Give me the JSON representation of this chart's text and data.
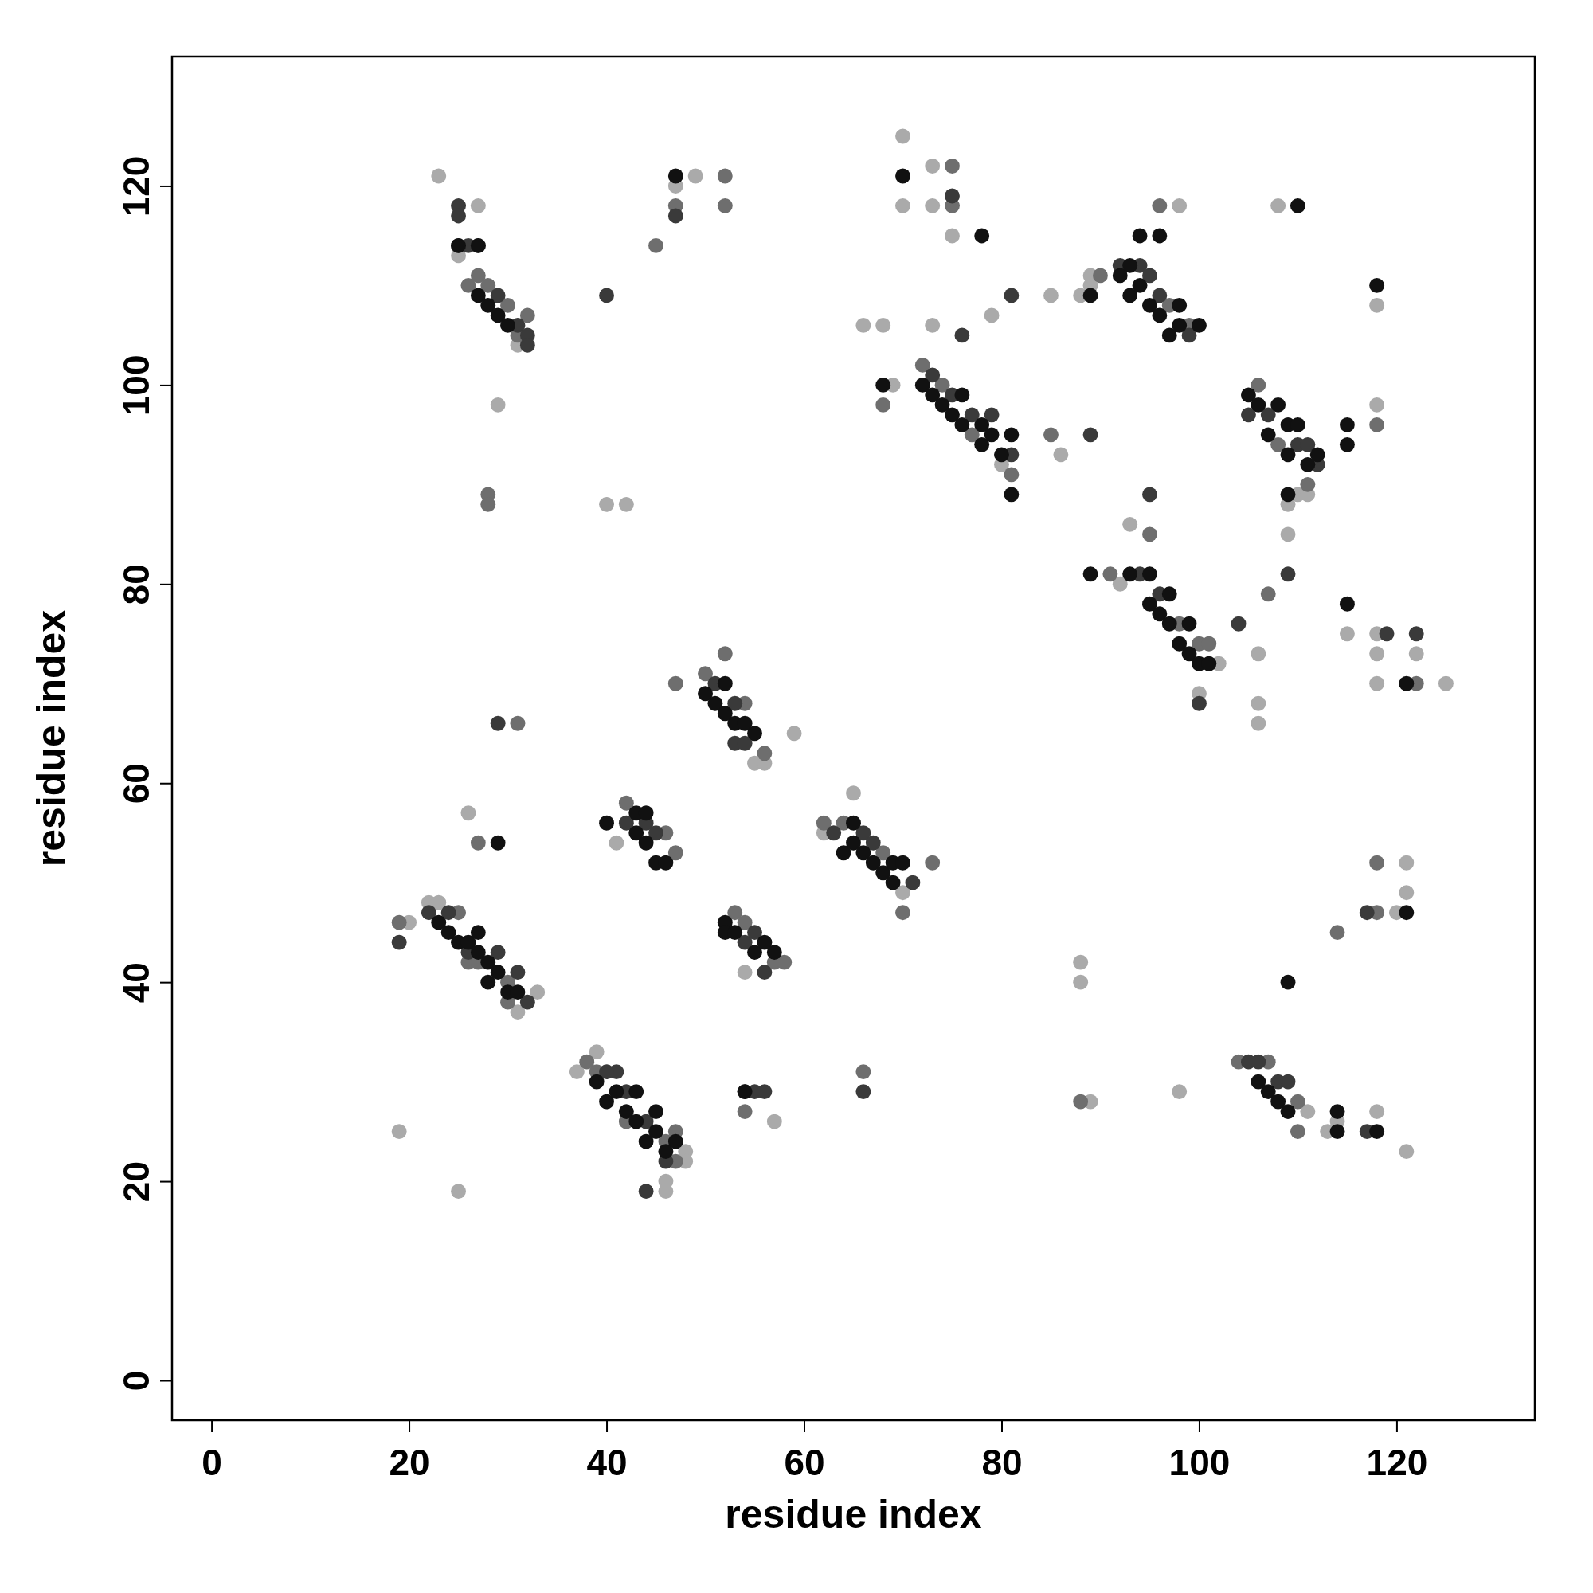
{
  "chart_data": {
    "type": "scatter",
    "xlabel": "residue index",
    "ylabel": "residue index",
    "xlim": [
      -4,
      134
    ],
    "ylim": [
      -4,
      133
    ],
    "xticks": [
      0,
      20,
      40,
      60,
      80,
      100,
      120
    ],
    "yticks": [
      0,
      20,
      40,
      60,
      80,
      100,
      120
    ],
    "marker": "circle",
    "series": [
      {
        "color": "#aaaaaa",
        "x": [
          20,
          22,
          23,
          31,
          33,
          37,
          39,
          48,
          48,
          46,
          46,
          23,
          27,
          25,
          31,
          29,
          26,
          19,
          25,
          41,
          40,
          42,
          47,
          49,
          54,
          55,
          56,
          59,
          57,
          62,
          65,
          70,
          69,
          80,
          70,
          70,
          73,
          73,
          75,
          79,
          66,
          68,
          73,
          85,
          86,
          88,
          89,
          89,
          92,
          93,
          100,
          102,
          98,
          110,
          111,
          109,
          109,
          111,
          113,
          114,
          118,
          121,
          98,
          89,
          88,
          88,
          106,
          106,
          106,
          115,
          118,
          118,
          118,
          122,
          125,
          118,
          118,
          108,
          120,
          121,
          121
        ],
        "values": [
          46,
          48,
          48,
          37,
          39,
          31,
          33,
          23,
          22,
          20,
          19,
          121,
          118,
          113,
          104,
          98,
          57,
          25,
          19,
          54,
          88,
          88,
          120,
          121,
          41,
          62,
          62,
          65,
          26,
          55,
          59,
          49,
          100,
          92,
          125,
          118,
          122,
          118,
          115,
          107,
          106,
          106,
          106,
          109,
          93,
          109,
          110,
          111,
          80,
          86,
          69,
          72,
          118,
          89,
          89,
          88,
          85,
          27,
          25,
          26,
          27,
          23,
          29,
          28,
          42,
          40,
          73,
          68,
          66,
          75,
          75,
          73,
          70,
          73,
          70,
          108,
          98,
          118,
          47,
          52,
          49
        ]
      },
      {
        "color": "#6e6e6e",
        "x": [
          25,
          26,
          27,
          30,
          30,
          19,
          38,
          39,
          42,
          47,
          46,
          47,
          26,
          27,
          28,
          30,
          31,
          32,
          28,
          28,
          31,
          27,
          42,
          46,
          47,
          45,
          47,
          52,
          52,
          47,
          50,
          52,
          54,
          56,
          53,
          54,
          57,
          58,
          54,
          66,
          62,
          64,
          68,
          70,
          73,
          68,
          72,
          74,
          77,
          81,
          75,
          75,
          85,
          90,
          96,
          97,
          99,
          91,
          95,
          98,
          100,
          101,
          106,
          108,
          111,
          107,
          104,
          107,
          110,
          110,
          88,
          122,
          118,
          114,
          118,
          118
        ],
        "values": [
          47,
          42,
          42,
          40,
          38,
          46,
          32,
          31,
          26,
          25,
          24,
          22,
          110,
          111,
          110,
          108,
          105,
          107,
          89,
          88,
          66,
          54,
          58,
          55,
          53,
          114,
          118,
          121,
          118,
          70,
          71,
          73,
          68,
          63,
          47,
          46,
          42,
          42,
          27,
          31,
          56,
          56,
          53,
          47,
          52,
          98,
          102,
          100,
          95,
          91,
          122,
          118,
          95,
          111,
          118,
          108,
          106,
          81,
          85,
          76,
          74,
          74,
          100,
          94,
          90,
          79,
          32,
          32,
          28,
          25,
          28,
          70,
          96,
          45,
          47,
          52
        ]
      },
      {
        "color": "#3a3a3a",
        "x": [
          22,
          24,
          26,
          29,
          31,
          32,
          19,
          41,
          42,
          44,
          46,
          40,
          44,
          25,
          25,
          25,
          26,
          27,
          29,
          31,
          32,
          32,
          29,
          42,
          45,
          44,
          40,
          47,
          51,
          53,
          53,
          54,
          54,
          55,
          56,
          54,
          55,
          56,
          66,
          63,
          66,
          67,
          71,
          73,
          75,
          77,
          79,
          81,
          75,
          76,
          81,
          89,
          92,
          94,
          95,
          96,
          99,
          94,
          96,
          95,
          100,
          105,
          107,
          110,
          111,
          112,
          109,
          105,
          106,
          108,
          109,
          117,
          104,
          119,
          122,
          117
        ],
        "values": [
          47,
          47,
          43,
          43,
          41,
          38,
          44,
          31,
          29,
          26,
          22,
          31,
          19,
          114,
          118,
          117,
          114,
          114,
          109,
          106,
          105,
          104,
          66,
          56,
          55,
          56,
          109,
          117,
          70,
          68,
          64,
          64,
          44,
          45,
          41,
          29,
          29,
          29,
          29,
          55,
          55,
          54,
          50,
          101,
          99,
          97,
          97,
          93,
          119,
          105,
          109,
          95,
          112,
          112,
          111,
          109,
          105,
          81,
          79,
          89,
          68,
          97,
          97,
          94,
          94,
          92,
          81,
          32,
          32,
          30,
          30,
          25,
          76,
          75,
          75,
          47
        ]
      },
      {
        "color": "#111111",
        "x": [
          23,
          24,
          25,
          26,
          27,
          27,
          28,
          28,
          29,
          30,
          31,
          39,
          40,
          41,
          42,
          43,
          43,
          44,
          45,
          45,
          46,
          47,
          25,
          27,
          27,
          28,
          29,
          30,
          29,
          40,
          43,
          43,
          44,
          44,
          45,
          46,
          47,
          50,
          51,
          52,
          52,
          53,
          54,
          55,
          52,
          52,
          53,
          55,
          56,
          57,
          54,
          64,
          65,
          65,
          66,
          67,
          68,
          69,
          69,
          70,
          68,
          72,
          73,
          74,
          75,
          76,
          76,
          78,
          78,
          79,
          80,
          81,
          81,
          70,
          78,
          89,
          92,
          93,
          93,
          94,
          94,
          95,
          96,
          96,
          97,
          98,
          98,
          100,
          89,
          93,
          95,
          95,
          96,
          97,
          97,
          98,
          99,
          99,
          100,
          101,
          105,
          106,
          107,
          108,
          109,
          109,
          110,
          111,
          112,
          109,
          115,
          115,
          106,
          107,
          108,
          109,
          114,
          114,
          118,
          109,
          115,
          118,
          121,
          110,
          121
        ],
        "values": [
          46,
          45,
          44,
          44,
          45,
          43,
          42,
          40,
          41,
          39,
          39,
          30,
          28,
          29,
          27,
          29,
          26,
          24,
          27,
          25,
          23,
          24,
          114,
          114,
          109,
          108,
          107,
          106,
          54,
          56,
          57,
          55,
          57,
          54,
          52,
          52,
          121,
          69,
          68,
          70,
          67,
          66,
          66,
          65,
          46,
          45,
          45,
          43,
          44,
          43,
          29,
          53,
          56,
          54,
          53,
          52,
          51,
          52,
          50,
          52,
          100,
          100,
          99,
          98,
          97,
          96,
          99,
          96,
          94,
          95,
          93,
          95,
          89,
          121,
          115,
          109,
          111,
          112,
          109,
          115,
          110,
          108,
          107,
          115,
          105,
          108,
          106,
          106,
          81,
          81,
          81,
          78,
          77,
          76,
          79,
          74,
          76,
          73,
          72,
          72,
          99,
          98,
          95,
          98,
          96,
          93,
          96,
          92,
          93,
          89,
          96,
          94,
          30,
          29,
          28,
          27,
          27,
          25,
          25,
          40,
          78,
          110,
          70,
          118,
          47
        ]
      }
    ]
  }
}
